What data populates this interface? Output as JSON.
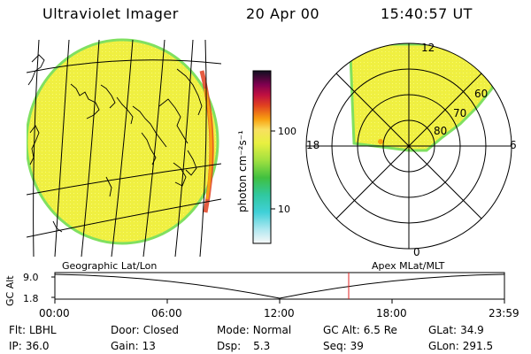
{
  "header": {
    "app_title": "Ultraviolet Imager",
    "date": "20 Apr 00",
    "time": "15:40:57 UT"
  },
  "colorbar": {
    "unit_label": "photon cm⁻²s⁻¹",
    "tick_labels": [
      "100",
      "10"
    ]
  },
  "polar_plot": {
    "hour_labels": [
      "12",
      "18",
      "6",
      "0"
    ],
    "lat_labels": [
      "60",
      "70",
      "80"
    ]
  },
  "timeline": {
    "left_label": "Geographic Lat/Lon",
    "right_label": "Apex MLat/MLT",
    "axis_label": "GC Alt",
    "alt_ticks": [
      "9.0",
      "1.8"
    ],
    "time_ticks": [
      "00:00",
      "06:00",
      "12:00",
      "18:00",
      "23:59"
    ],
    "marker_time": "15:40:57"
  },
  "status": {
    "flt_label": "Flt:",
    "flt_value": "LBHL",
    "ip_label": "IP:",
    "ip_value": "36.0",
    "door_label": "Door:",
    "door_value": "Closed",
    "gain_label": "Gain:",
    "gain_value": "13",
    "mode_label": "Mode:",
    "mode_value": "Normal",
    "dsp_label": "Dsp:",
    "dsp_value": "5.3",
    "gcalt_label": "GC Alt:",
    "gcalt_value": "6.5 Re",
    "seq_label": "Seq:",
    "seq_value": "39",
    "glat_label": "GLat:",
    "glat_value": "34.9",
    "glon_label": "GLon:",
    "glon_value": "291.5"
  },
  "colors": {
    "emission_fill": "#f0f040",
    "emission_edge": "#80e060",
    "limb_red": "#e04020",
    "marker_red": "#e02020"
  }
}
